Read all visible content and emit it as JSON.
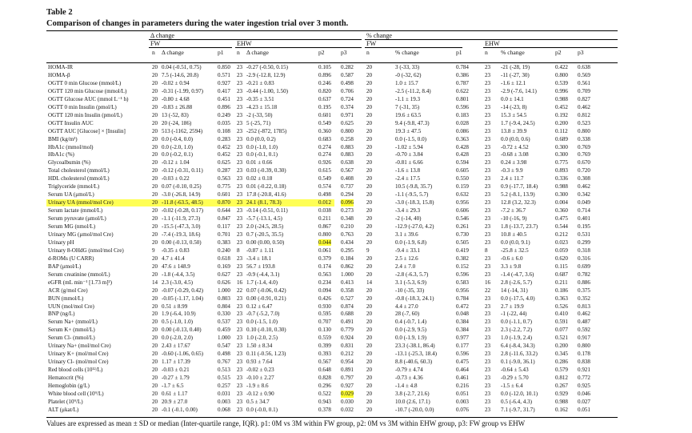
{
  "title": "Table 2",
  "subtitle": "Comparison of changes in parameters during the water ingestion trial over 3 month.",
  "groups": {
    "delta": "Δ change",
    "pct": "% change",
    "fw": "FW",
    "ehw": "EHW"
  },
  "headers": {
    "n": "n",
    "delta": "Δ change",
    "pct": "% change",
    "p1": "p1",
    "p2": "p2",
    "p3": "p3"
  },
  "rows": [
    {
      "label": "HOMA-IR",
      "n1": "20",
      "v1": "0.04 (-0.51, 0.75)",
      "p1": "0.850",
      "n2": "23",
      "v2": "-0.27 (-0.50, 0.15)",
      "p2": "0.105",
      "p3": "0.282",
      "n3": "20",
      "v3": "3 (-33, 33)",
      "p1b": "0.784",
      "n4": "23",
      "v4": "-21 (-28, 19)",
      "p2b": "0.422",
      "p3b": "0.638"
    },
    {
      "label": "HOMA-β",
      "n1": "20",
      "v1": "7.5 (-14.6, 20.8)",
      "p1": "0.571",
      "n2": "23",
      "v2": "-2.9 (-12.8, 12.9)",
      "p2": "0.896",
      "p3": "0.587",
      "n3": "20",
      "v3": "-0 (-32, 62)",
      "p1b": "0.386",
      "n4": "23",
      "v4": "-11 (-27, 30)",
      "p2b": "0.800",
      "p3b": "0.569"
    },
    {
      "label": "OGTT 0 min Glucose (mmol/L)",
      "n1": "20",
      "v1": "-0.02 ± 0.94",
      "p1": "0.927",
      "n2": "23",
      "v2": "-0.21 ± 0.83",
      "p2": "0.246",
      "p3": "0.498",
      "n3": "20",
      "v3": "1.0 ± 15.7",
      "p1b": "0.787",
      "n4": "23",
      "v4": "-1.6 ± 12.1",
      "p2b": "0.539",
      "p3b": "0.561"
    },
    {
      "label": "OGTT 120 min Glucose (mmol/L)",
      "n1": "20",
      "v1": "-0.31 (-1.99, 0.97)",
      "p1": "0.417",
      "n2": "23",
      "v2": "-0.44 (-1.00, 1.50)",
      "p2": "0.820",
      "p3": "0.706",
      "n3": "20",
      "v3": "-2.5 (-11.2, 8.4)",
      "p1b": "0.622",
      "n4": "23",
      "v4": "-2.9 (-7.6, 14.1)",
      "p2b": "0.996",
      "p3b": "0.709"
    },
    {
      "label": "OGTT Glucose AUC (mmol L⁻¹ h)",
      "n1": "20",
      "v1": "-0.80 ± 4.68",
      "p1": "0.451",
      "n2": "23",
      "v2": "-0.35 ± 3.51",
      "p2": "0.637",
      "p3": "0.724",
      "n3": "20",
      "v3": "-1.1 ± 19.3",
      "p1b": "0.801",
      "n4": "23",
      "v4": "0.0 ± 14.1",
      "p2b": "0.988",
      "p3b": "0.827"
    },
    {
      "label": "OGTT 0 min Insulin (pmol/L)",
      "n1": "20",
      "v1": "-0.83 ± 26.88",
      "p1": "0.896",
      "n2": "23",
      "v2": "-4.23 ± 15.18",
      "p2": "0.195",
      "p3": "0.374",
      "n3": "20",
      "v3": "7 (-31, 35)",
      "p1b": "0.596",
      "n4": "23",
      "v4": "-14 (-23, 8)",
      "p2b": "0.452",
      "p3b": "0.462"
    },
    {
      "label": "OGTT 120 min Insulin (pmol/L)",
      "n1": "20",
      "v1": "13 (-52, 83)",
      "p1": "0.249",
      "n2": "23",
      "v2": "-2 (-33, 50)",
      "p2": "0.601",
      "p3": "0.971",
      "n3": "20",
      "v3": "19.6 ± 63.5",
      "p1b": "0.183",
      "n4": "23",
      "v4": "15.3 ± 54.5",
      "p2b": "0.192",
      "p3b": "0.812"
    },
    {
      "label": "OGTT Insulin AUC",
      "n1": "20",
      "v1": "20 (-24, 186)",
      "p1": "0.035",
      "n2": "23",
      "v2": "5 (-25, 71)",
      "p2": "0.549",
      "p3": "0.625",
      "n3": "20",
      "v3": "9.4 (-9.8, 47.3)",
      "p1b": "0.028",
      "n4": "23",
      "v4": "1.7 (-9.4, 24.5)",
      "p2b": "0.200",
      "p3b": "0.523"
    },
    {
      "label": "OGTT AUC [Glucose] × [Insulin]",
      "n1": "20",
      "v1": "513 (-1162, 2594)",
      "p1": "0.108",
      "n2": "23",
      "v2": "-252 (-872, 1785)",
      "p2": "0.360",
      "p3": "0.800",
      "n3": "20",
      "v3": "19.3 ± 47.5",
      "p1b": "0.086",
      "n4": "23",
      "v4": "13.8 ± 39.9",
      "p2b": "0.112",
      "p3b": "0.800"
    },
    {
      "label": "BMI (kg/m²)",
      "n1": "20",
      "v1": "0.0 (-0.4, 0.0)",
      "p1": "0.283",
      "n2": "23",
      "v2": "0.0 (0.0, 0.2)",
      "p2": "0.683",
      "p3": "0.258",
      "n3": "20",
      "v3": "0.0 (-1.5, 0.0)",
      "p1b": "0.363",
      "n4": "23",
      "v4": "0.0 (0.0, 0.6)",
      "p2b": "0.689",
      "p3b": "0.338"
    },
    {
      "label": "HbA1c (mmol/mol)",
      "n1": "20",
      "v1": "0.0 (-2.0, 1.0)",
      "p1": "0.452",
      "n2": "23",
      "v2": "0.0 (-1.0, 1.0)",
      "p2": "0.274",
      "p3": "0.883",
      "n3": "20",
      "v3": "-1.02 ± 5.94",
      "p1b": "0.428",
      "n4": "23",
      "v4": "-0.72 ± 4.52",
      "p2b": "0.300",
      "p3b": "0.769"
    },
    {
      "label": "HbA1c (%)",
      "n1": "20",
      "v1": "0.0 (-0.2, 0.1)",
      "p1": "0.452",
      "n2": "23",
      "v2": "0.0 (-0.1, 0.1)",
      "p2": "0.274",
      "p3": "0.883",
      "n3": "20",
      "v3": "-0.70 ± 3.84",
      "p1b": "0.428",
      "n4": "23",
      "v4": "-0.68 ± 3.08",
      "p2b": "0.300",
      "p3b": "0.769"
    },
    {
      "label": "Glycoalbumin (%)",
      "n1": "20",
      "v1": "-0.12 ± 1.04",
      "p1": "0.625",
      "n2": "23",
      "v2": "0.01 ± 0.66",
      "p2": "0.926",
      "p3": "0.638",
      "n3": "20",
      "v3": "-0.81 ± 6.66",
      "p1b": "0.594",
      "n4": "23",
      "v4": "0.24 ± 3.98",
      "p2b": "0.775",
      "p3b": "0.670"
    },
    {
      "label": "Total cholesterol (mmol/L)",
      "n1": "20",
      "v1": "-0.12 (-0.31, 0.11)",
      "p1": "0.287",
      "n2": "23",
      "v2": "0.03 (-0.39, 0.30)",
      "p2": "0.615",
      "p3": "0.567",
      "n3": "20",
      "v3": "-1.6 ± 13.8",
      "p1b": "0.605",
      "n4": "23",
      "v4": "-0.3 ± 9.9",
      "p2b": "0.893",
      "p3b": "0.720"
    },
    {
      "label": "HDL cholesterol (mmol/L)",
      "n1": "20",
      "v1": "-0.03 ± 0.22",
      "p1": "0.563",
      "n2": "23",
      "v2": "0.02 ± 0.18",
      "p2": "0.549",
      "p3": "0.408",
      "n3": "20",
      "v3": "-2.4 ± 17.5",
      "p1b": "0.550",
      "n4": "23",
      "v4": "2.4 ± 11.7",
      "p2b": "0.336",
      "p3b": "0.308"
    },
    {
      "label": "Triglyceride (mmol/L)",
      "n1": "20",
      "v1": "0.07 (-0.10, 0.25)",
      "p1": "0.775",
      "n2": "23",
      "v2": "0.01 (-0.22, 0.18)",
      "p2": "0.574",
      "p3": "0.737",
      "n3": "20",
      "v3": "10.5 (-9.8, 35.7)",
      "p1b": "0.159",
      "n4": "23",
      "v4": "0.9 (-17.7, 18.4)",
      "p2b": "0.988",
      "p3b": "0.462"
    },
    {
      "label": "Serum UA (μmol/L)",
      "n1": "20",
      "v1": "-3.0 (-26.8, 14.9)",
      "p1": "0.601",
      "n2": "23",
      "v2": "17.8 (-20.8, 41.6)",
      "p2": "0.498",
      "p3": "0.294",
      "n3": "20",
      "v3": "-1.1 (-9.5, 5.7)",
      "p1b": "0.632",
      "n4": "23",
      "v4": "5.2 (-8.1, 13.9)",
      "p2b": "0.300",
      "p3b": "0.342"
    },
    {
      "label": "Urinary UA (mmol/mol Cre)",
      "n1": "20",
      "v1": "-11.8 (-63.5, 48.5)",
      "p1": "0.870",
      "n2": "23",
      "v2": "24.1 (8.1, 78.3)",
      "p2": "0.012",
      "p3": "0.096",
      "n3": "20",
      "v3": "-3.0 (-18.3, 15.8)",
      "p1b": "0.956",
      "n4": "23",
      "v4": "12.8 (3.2, 32.3)",
      "p2b": "0.004",
      "p3b": "0.049",
      "hl": true,
      "hlp2": true
    },
    {
      "label": "Serum lactate (mmol/L)",
      "n1": "20",
      "v1": "-0.02 (-0.28, 0.17)",
      "p1": "0.644",
      "n2": "23",
      "v2": "-0.14 (-0.51, 0.11)",
      "p2": "0.038",
      "p3": "0.273",
      "n3": "20",
      "v3": "-3.4 ± 29.3",
      "p1b": "0.606",
      "n4": "23",
      "v4": "-7.2 ± 36.7",
      "p2b": "0.360",
      "p3b": "0.714"
    },
    {
      "label": "Serum pyruvate (μmol/L)",
      "n1": "20",
      "v1": "-1.1 (-11.9, 27.3)",
      "p1": "0.847",
      "n2": "23",
      "v2": "-5.7 (-13.1, 4.5)",
      "p2": "0.211",
      "p3": "0.348",
      "n3": "20",
      "v3": "-2 (-14, 40)",
      "p1b": "0.546",
      "n4": "23",
      "v4": "-10 (-16, 9)",
      "p2b": "0.475",
      "p3b": "0.401"
    },
    {
      "label": "Serum MG (nmol/L)",
      "n1": "20",
      "v1": "-15.5 (-47.3, 3.0)",
      "p1": "0.117",
      "n2": "23",
      "v2": "2.0 (-24.5, 28.5)",
      "p2": "0.867",
      "p3": "0.210",
      "n3": "20",
      "v3": "-12.9 (-27.0, 4.2)",
      "p1b": "0.261",
      "n4": "23",
      "v4": "1.8 (-13.7, 23.7)",
      "p2b": "0.544",
      "p3b": "0.195"
    },
    {
      "label": "Urinary MG (μmol/mol Cre)",
      "n1": "20",
      "v1": "-7.4 (-19.3, 18.6)",
      "p1": "0.701",
      "n2": "23",
      "v2": "0.7 (-20.5, 35.5)",
      "p2": "0.800",
      "p3": "0.763",
      "n3": "20",
      "v3": "3.1 ± 39.6",
      "p1b": "0.730",
      "n4": "23",
      "v4": "10.8 ± 40.5",
      "p2b": "0.212",
      "p3b": "0.531"
    },
    {
      "label": "Urinary pH",
      "n1": "20",
      "v1": "0.00 (-0.13, 0.50)",
      "p1": "0.383",
      "n2": "23",
      "v2": "0.00 (0.00, 0.50)",
      "p2": "0.044",
      "p3": "0.434",
      "n3": "20",
      "v3": "0.0 (-1.9, 6.8)",
      "p1b": "0.505",
      "n4": "23",
      "v4": "0.0 (0.0, 9.1)",
      "p2b": "0.023",
      "p3b": "0.299",
      "hlp2only": true
    },
    {
      "label": "Urinary 8-OHdG (nmol/mol Cre)",
      "n1": "9",
      "v1": "-0.35 ± 0.83",
      "p1": "0.240",
      "n2": "8",
      "v2": "-0.87 ± 1.11",
      "p2": "0.061",
      "p3": "0.295",
      "n3": "9",
      "v3": "-9.4 ± 33.1",
      "p1b": "0.419",
      "n4": "8",
      "v4": "-25.8 ± 32.5",
      "p2b": "0.059",
      "p3b": "0.318"
    },
    {
      "label": "d-ROMs (U CARR)",
      "n1": "20",
      "v1": "4.7 ± 41.4",
      "p1": "0.618",
      "n2": "23",
      "v2": "-3.4 ± 18.1",
      "p2": "0.379",
      "p3": "0.184",
      "n3": "20",
      "v3": "2.5 ± 12.6",
      "p1b": "0.382",
      "n4": "23",
      "v4": "-0.6 ± 6.0",
      "p2b": "0.620",
      "p3b": "0.316"
    },
    {
      "label": "BAP (μmol/L)",
      "n1": "20",
      "v1": "47.6 ± 148.9",
      "p1": "0.169",
      "n2": "23",
      "v2": "56.7 ± 193.8",
      "p2": "0.174",
      "p3": "0.862",
      "n3": "20",
      "v3": "2.4 ± 7.0",
      "p1b": "0.152",
      "n4": "23",
      "v4": "3.3 ± 9.8",
      "p2b": "0.115",
      "p3b": "0.699"
    },
    {
      "label": "Serum creatinine (mmol/L)",
      "n1": "20",
      "v1": "-1.8 (-4.4, 3.5)",
      "p1": "0.627",
      "n2": "23",
      "v2": "-0.9 (-4.4, 3.1)",
      "p2": "0.563",
      "p3": "1.000",
      "n3": "20",
      "v3": "-2.8 (-6.3, 5.7)",
      "p1b": "0.596",
      "n4": "23",
      "v4": "-1.4 (-4.7, 3.6)",
      "p2b": "0.687",
      "p3b": "0.782"
    },
    {
      "label": "eGFR (mL min⁻¹ [1.73 m]²)",
      "n1": "14",
      "v1": "2.3 (-3.0, 4.5)",
      "p1": "0.626",
      "n2": "16",
      "v2": "1.7 (-1.4, 4.0)",
      "p2": "0.234",
      "p3": "0.413",
      "n3": "14",
      "v3": "3.1 (-5.3, 6.9)",
      "p1b": "0.583",
      "n4": "16",
      "v4": "2.8 (-2.6, 5.7)",
      "p2b": "0.211",
      "p3b": "0.886"
    },
    {
      "label": "ACR (g/mol Cre)",
      "n1": "20",
      "v1": "-0.07 (-0.29, 0.42)",
      "p1": "1.000",
      "n2": "22",
      "v2": "0.07 (-0.06, 0.42)",
      "p2": "0.094",
      "p3": "0.358",
      "n3": "20",
      "v3": "-10 (-35, 33)",
      "p1b": "0.956",
      "n4": "22",
      "v4": "14 (-14, 31)",
      "p2b": "0.186",
      "p3b": "0.375"
    },
    {
      "label": "BUN (mmol/L)",
      "n1": "20",
      "v1": "-0.05 (-1.17, 1.04)",
      "p1": "0.803",
      "n2": "23",
      "v2": "0.00 (-0.91, 0.21)",
      "p2": "0.426",
      "p3": "0.527",
      "n3": "20",
      "v3": "-0.8 (-18.3, 24.1)",
      "p1b": "0.784",
      "n4": "23",
      "v4": "0.0 (-17.5, 4.0)",
      "p2b": "0.363",
      "p3b": "0.352"
    },
    {
      "label": "UUN (mol/mol Cre)",
      "n1": "20",
      "v1": "0.51 ± 8.99",
      "p1": "0.804",
      "n2": "23",
      "v2": "0.12 ± 6.47",
      "p2": "0.930",
      "p3": "0.874",
      "n3": "20",
      "v3": "4.4 ± 27.0",
      "p1b": "0.472",
      "n4": "23",
      "v4": "2.7 ± 19.9",
      "p2b": "0.526",
      "p3b": "0.813"
    },
    {
      "label": "BNP (ng/L)",
      "n1": "20",
      "v1": "1.9 (-6.4, 10.9)",
      "p1": "0.330",
      "n2": "23",
      "v2": "-0.7 (-5.2, 7.0)",
      "p2": "0.595",
      "p3": "0.688",
      "n3": "20",
      "v3": "28 (-7, 60)",
      "p1b": "0.048",
      "n4": "23",
      "v4": "-1 (-22, 44)",
      "p2b": "0.410",
      "p3b": "0.462"
    },
    {
      "label": "Serum Na+ (mmol/L)",
      "n1": "20",
      "v1": "0.5 (-1.0, 1.0)",
      "p1": "0.537",
      "n2": "23",
      "v2": "0.0 (-1.5, 1.0)",
      "p2": "0.707",
      "p3": "0.491",
      "n3": "20",
      "v3": "0.4 (-0.7, 1.4)",
      "p1b": "0.384",
      "n4": "23",
      "v4": "0.0 (-1.1, 0.7)",
      "p2b": "0.591",
      "p3b": "0.487"
    },
    {
      "label": "Serum K+ (mmol/L)",
      "n1": "20",
      "v1": "0.00 (-0.13, 0.40)",
      "p1": "0.459",
      "n2": "23",
      "v2": "0.10 (-0.10, 0.30)",
      "p2": "0.130",
      "p3": "0.779",
      "n3": "20",
      "v3": "0.0 (-2.9, 9.5)",
      "p1b": "0.384",
      "n4": "23",
      "v4": "2.3 (-2.2, 7.2)",
      "p2b": "0.077",
      "p3b": "0.592"
    },
    {
      "label": "Serum Cl- (mmol/L)",
      "n1": "20",
      "v1": "0.0 (-2.0, 2.0)",
      "p1": "1.000",
      "n2": "23",
      "v2": "1.0 (-2.0, 2.5)",
      "p2": "0.559",
      "p3": "0.924",
      "n3": "20",
      "v3": "0.0 (-1.9, 1.9)",
      "p1b": "0.977",
      "n4": "23",
      "v4": "1.0 (-1.9, 2.4)",
      "p2b": "0.521",
      "p3b": "0.917"
    },
    {
      "label": "Urinary Na+ (mol/mol Cre)",
      "n1": "20",
      "v1": "2.43 ± 17.67",
      "p1": "0.547",
      "n2": "23",
      "v2": "1.50 ± 8.34",
      "p2": "0.399",
      "p3": "0.831",
      "n3": "20",
      "v3": "23.3 (-38.1, 86.4)",
      "p1b": "0.177",
      "n4": "23",
      "v4": "6.4 (-8.4, 34.3)",
      "p2b": "0.200",
      "p3b": "0.800"
    },
    {
      "label": "Urinary K+ (mol/mol Cre)",
      "n1": "20",
      "v1": "-0.60 (-1.06, 0.65)",
      "p1": "0.498",
      "n2": "23",
      "v2": "0.11 (-0.56, 1.23)",
      "p2": "0.393",
      "p3": "0.212",
      "n3": "20",
      "v3": "-13.1 (-25.3, 18.4)",
      "p1b": "0.596",
      "n4": "23",
      "v4": "2.8 (-11.6, 33.2)",
      "p2b": "0.345",
      "p3b": "0.178"
    },
    {
      "label": "Urinary Cl- (mol/mol Cre)",
      "n1": "20",
      "v1": "1.17 ± 17.39",
      "p1": "0.767",
      "n2": "23",
      "v2": "0.93 ± 7.64",
      "p2": "0.567",
      "p3": "0.954",
      "n3": "20",
      "v3": "8.8 (-40.6, 60.3)",
      "p1b": "0.475",
      "n4": "23",
      "v4": "0.1 (-9.0, 36.1)",
      "p2b": "0.286",
      "p3b": "0.838"
    },
    {
      "label": "Red blood cells (10¹²/L)",
      "n1": "20",
      "v1": "-0.03 ± 0.21",
      "p1": "0.513",
      "n2": "23",
      "v2": "-0.02 ± 0.23",
      "p2": "0.648",
      "p3": "0.891",
      "n3": "20",
      "v3": "-0.79 ± 4.74",
      "p1b": "0.464",
      "n4": "23",
      "v4": "-0.64 ± 5.43",
      "p2b": "0.579",
      "p3b": "0.921"
    },
    {
      "label": "Hematocrit (%)",
      "n1": "20",
      "v1": "-0.27 ± 1.79",
      "p1": "0.515",
      "n2": "23",
      "v2": "-0.10 ± 2.27",
      "p2": "0.828",
      "p3": "0.797",
      "n3": "20",
      "v3": "-0.73 ± 4.36",
      "p1b": "0.461",
      "n4": "23",
      "v4": "-0.29 ± 5.70",
      "p2b": "0.812",
      "p3b": "0.772"
    },
    {
      "label": "Hemoglobin (g/L)",
      "n1": "20",
      "v1": "-1.7 ± 6.5",
      "p1": "0.257",
      "n2": "23",
      "v2": "-1.9 ± 8.6",
      "p2": "0.296",
      "p3": "0.927",
      "n3": "20",
      "v3": "-1.4 ± 4.8",
      "p1b": "0.216",
      "n4": "23",
      "v4": "-1.5 ± 6.4",
      "p2b": "0.267",
      "p3b": "0.925"
    },
    {
      "label": "White blood cell (10⁹/L)",
      "n1": "20",
      "v1": "0.61 ± 1.17",
      "p1": "0.031",
      "n2": "23",
      "v2": "-0.12 ± 0.90",
      "p2": "0.522",
      "p3": "0.029",
      "n3": "20",
      "v3": "3.8 (-2.7, 21.6)",
      "p1b": "0.051",
      "n4": "23",
      "v4": "0.0 (-12.0, 10.1)",
      "p2b": "0.929",
      "p3b": "0.046",
      "hlp3only": true
    },
    {
      "label": "Platelet (10⁹/L)",
      "n1": "20",
      "v1": "20.9 ± 27.0",
      "p1": "0.003",
      "n2": "23",
      "v2": "0.5 ± 34.7",
      "p2": "0.943",
      "p3": "0.030",
      "n3": "20",
      "v3": "10.0 (2.6, 17.1)",
      "p1b": "0.003",
      "n4": "23",
      "v4": "0.5 (-6.4, 4.3)",
      "p2b": "0.988",
      "p3b": "0.027"
    },
    {
      "label": "ALT (μkat/L)",
      "n1": "20",
      "v1": "-0.1 (-0.1, 0.00)",
      "p1": "0.068",
      "n2": "23",
      "v2": "0.0 (-0.0, 0.1)",
      "p2": "0.378",
      "p3": "0.032",
      "n3": "20",
      "v3": "-10.7 (-20.0, 0.0)",
      "p1b": "0.076",
      "n4": "23",
      "v4": "7.1 (-9.7, 31.7)",
      "p2b": "0.162",
      "p3b": "0.051"
    }
  ],
  "footnote": "Values are expressed as mean ± SD or median (Inter-quartile range, IQR). p1: 0M vs 3M within FW group, p2: 0M vs 3M within EHW group, p3: FW group vs EHW"
}
